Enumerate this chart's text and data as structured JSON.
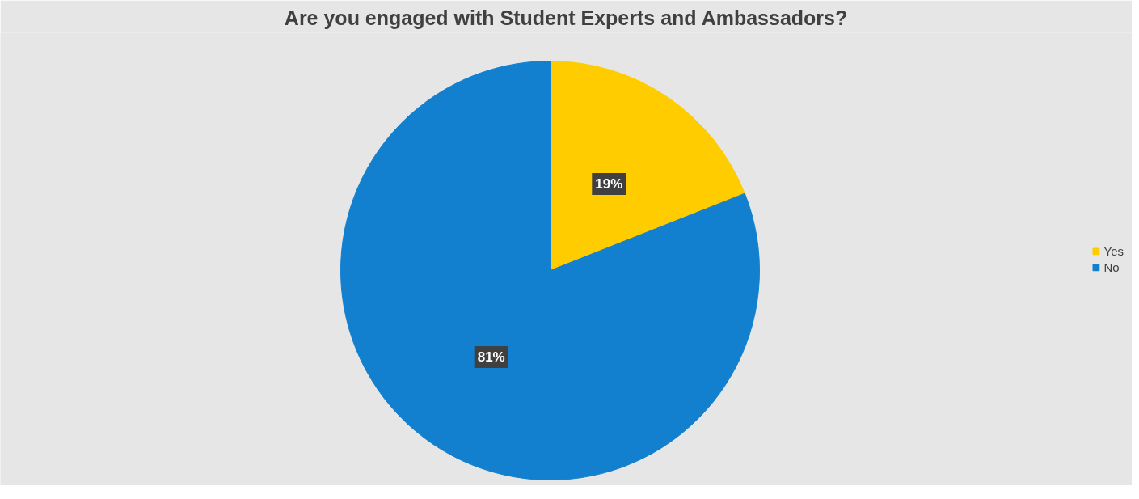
{
  "chart_data": {
    "type": "pie",
    "title": "Are you engaged with Student Experts and Ambassadors?",
    "categories": [
      "Yes",
      "No"
    ],
    "values": [
      19,
      81
    ],
    "colors": [
      "#ffcc00",
      "#1380cf"
    ],
    "value_labels": [
      "19%",
      "81%"
    ],
    "legend": "right"
  }
}
